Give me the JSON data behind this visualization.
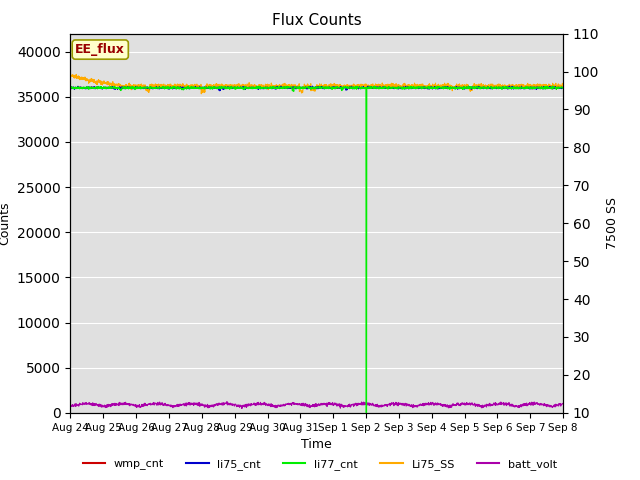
{
  "title": "Flux Counts",
  "ylabel_left": "Counts",
  "ylabel_right": "7500 SS",
  "xlabel": "Time",
  "annotation_text": "EE_flux",
  "annotation_box_color": "#ffffcc",
  "annotation_text_color": "#990000",
  "background_color": "#e0e0e0",
  "ylim_left": [
    0,
    42000
  ],
  "ylim_right": [
    10,
    110
  ],
  "yticks_left": [
    0,
    5000,
    10000,
    15000,
    20000,
    25000,
    30000,
    35000,
    40000
  ],
  "yticks_right": [
    10,
    20,
    30,
    40,
    50,
    60,
    70,
    80,
    90,
    100,
    110
  ],
  "legend_entries": [
    "wmp_cnt",
    "li75_cnt",
    "li77_cnt",
    "Li75_SS",
    "batt_volt"
  ],
  "legend_colors": [
    "#cc0000",
    "#0000cc",
    "#00ee00",
    "#ffaa00",
    "#aa00aa"
  ],
  "line_wmp_cnt_color": "#cc0000",
  "line_li75_cnt_color": "#0000cc",
  "line_li77_cnt_color": "#00ee00",
  "line_Li75_SS_color": "#ffaa00",
  "line_batt_volt_color": "#aa00aa",
  "tick_label_fontsize": 7.5,
  "axis_label_fontsize": 9,
  "title_fontsize": 11
}
